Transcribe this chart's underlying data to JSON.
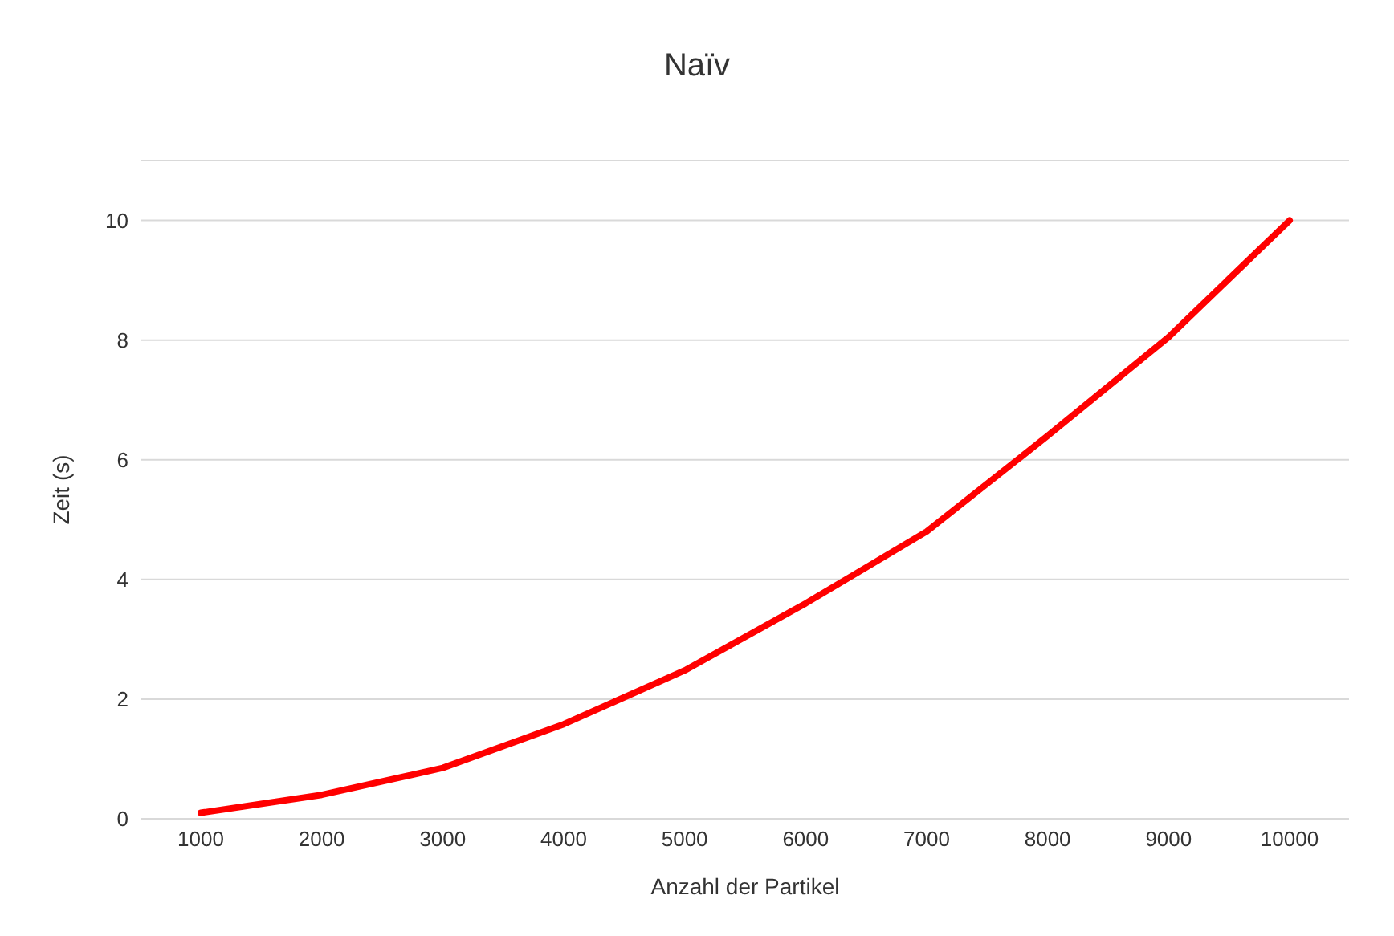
{
  "chart_data": {
    "type": "line",
    "title": "Naïv",
    "xlabel": "Anzahl der Partikel",
    "ylabel": "Zeit (s)",
    "categories": [
      "1000",
      "2000",
      "3000",
      "4000",
      "5000",
      "6000",
      "7000",
      "8000",
      "9000",
      "10000"
    ],
    "series": [
      {
        "color": "#ff0000",
        "values": [
          0.1,
          0.4,
          0.85,
          1.58,
          2.48,
          3.6,
          4.8,
          6.4,
          8.05,
          10.0
        ]
      }
    ],
    "ylim": [
      0,
      11
    ],
    "yticks": [
      0,
      2,
      4,
      6,
      8,
      10
    ],
    "grid": "y",
    "legend": false,
    "marker": "none",
    "line_style": "solid"
  }
}
